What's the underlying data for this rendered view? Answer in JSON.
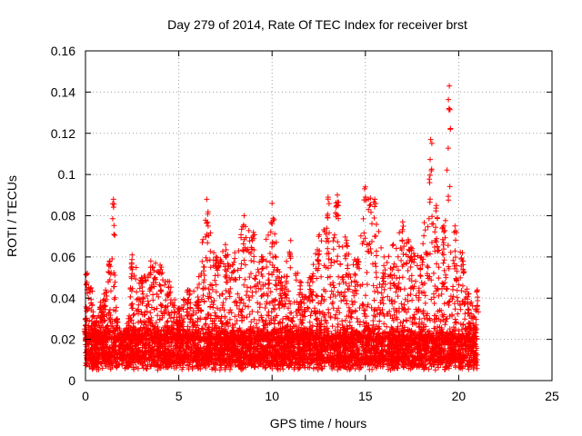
{
  "chart_data": {
    "type": "scatter",
    "title": "Day 279 of 2014, Rate Of TEC Index for receiver brst",
    "xlabel": "GPS time / hours",
    "ylabel": "ROTI / TECUs",
    "xlim": [
      0,
      25
    ],
    "ylim": [
      0,
      0.16
    ],
    "xticks": [
      0,
      5,
      10,
      15,
      20,
      25
    ],
    "yticks": [
      0,
      0.02,
      0.04,
      0.06,
      0.08,
      0.1,
      0.12,
      0.14,
      0.16
    ],
    "xtick_labels": [
      "0",
      "5",
      "10",
      "15",
      "20",
      "25"
    ],
    "ytick_labels": [
      "0",
      "0.02",
      "0.04",
      "0.06",
      "0.08",
      "0.1",
      "0.12",
      "0.14",
      "0.16"
    ],
    "grid": true,
    "marker": "+",
    "color": "#ff0000",
    "x_data_range": [
      0,
      21
    ],
    "baseline_band": [
      0.005,
      0.02
    ],
    "envelope": [
      [
        0.0,
        0.03
      ],
      [
        0.1,
        0.052
      ],
      [
        0.3,
        0.045
      ],
      [
        0.5,
        0.028
      ],
      [
        0.8,
        0.038
      ],
      [
        1.0,
        0.042
      ],
      [
        1.3,
        0.058
      ],
      [
        1.5,
        0.088
      ],
      [
        1.7,
        0.03
      ],
      [
        2.0,
        0.022
      ],
      [
        2.3,
        0.03
      ],
      [
        2.5,
        0.061
      ],
      [
        3.0,
        0.05
      ],
      [
        3.5,
        0.058
      ],
      [
        4.0,
        0.056
      ],
      [
        4.5,
        0.048
      ],
      [
        5.0,
        0.035
      ],
      [
        5.5,
        0.044
      ],
      [
        6.0,
        0.045
      ],
      [
        6.5,
        0.088
      ],
      [
        7.0,
        0.06
      ],
      [
        7.5,
        0.066
      ],
      [
        8.0,
        0.062
      ],
      [
        8.5,
        0.08
      ],
      [
        9.0,
        0.072
      ],
      [
        9.5,
        0.06
      ],
      [
        10.0,
        0.086
      ],
      [
        10.5,
        0.05
      ],
      [
        11.0,
        0.068
      ],
      [
        11.5,
        0.048
      ],
      [
        12.0,
        0.05
      ],
      [
        12.5,
        0.07
      ],
      [
        13.0,
        0.089
      ],
      [
        13.5,
        0.09
      ],
      [
        14.0,
        0.068
      ],
      [
        14.5,
        0.058
      ],
      [
        15.0,
        0.094
      ],
      [
        15.5,
        0.088
      ],
      [
        16.0,
        0.06
      ],
      [
        16.5,
        0.066
      ],
      [
        17.0,
        0.077
      ],
      [
        17.5,
        0.064
      ],
      [
        18.0,
        0.06
      ],
      [
        18.5,
        0.117
      ],
      [
        18.8,
        0.085
      ],
      [
        19.2,
        0.075
      ],
      [
        19.5,
        0.143
      ],
      [
        19.8,
        0.075
      ],
      [
        20.2,
        0.062
      ],
      [
        20.5,
        0.042
      ],
      [
        21.0,
        0.044
      ]
    ]
  }
}
